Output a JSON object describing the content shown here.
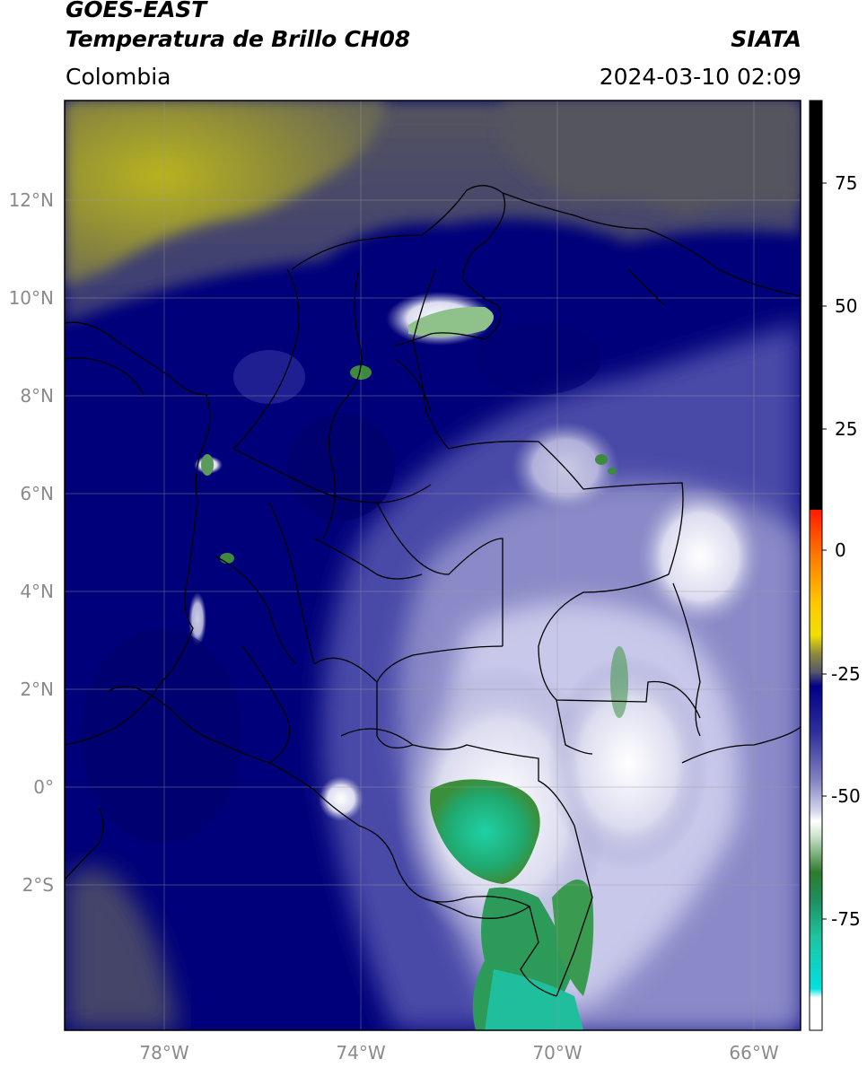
{
  "header": {
    "title_line1": "GOES-EAST",
    "title_line2": "Temperatura de Brillo CH08",
    "organization": "SIATA",
    "region": "Colombia",
    "timestamp": "2024-03-10 02:09"
  },
  "map": {
    "lat_labels": [
      "12°N",
      "10°N",
      "8°N",
      "6°N",
      "4°N",
      "2°N",
      "0°",
      "2°S"
    ],
    "lon_labels": [
      "78°W",
      "74°W",
      "70°W",
      "66°W"
    ]
  },
  "colorbar": {
    "tick_labels": [
      "75",
      "50",
      "25",
      "0",
      "-25",
      "-50",
      "-75"
    ],
    "colors": {
      "black": "#000000",
      "red": "#ff2a00",
      "orange": "#ff9a00",
      "yellow": "#f0e000",
      "olive": "#888640",
      "gray": "#555566",
      "navy": "#00007a",
      "blue": "#3c3ca0",
      "lavender": "#aaaad2",
      "white": "#ffffff",
      "green": "#2e8b2e",
      "teal": "#1ea28a",
      "cyan": "#00e5e5"
    }
  }
}
